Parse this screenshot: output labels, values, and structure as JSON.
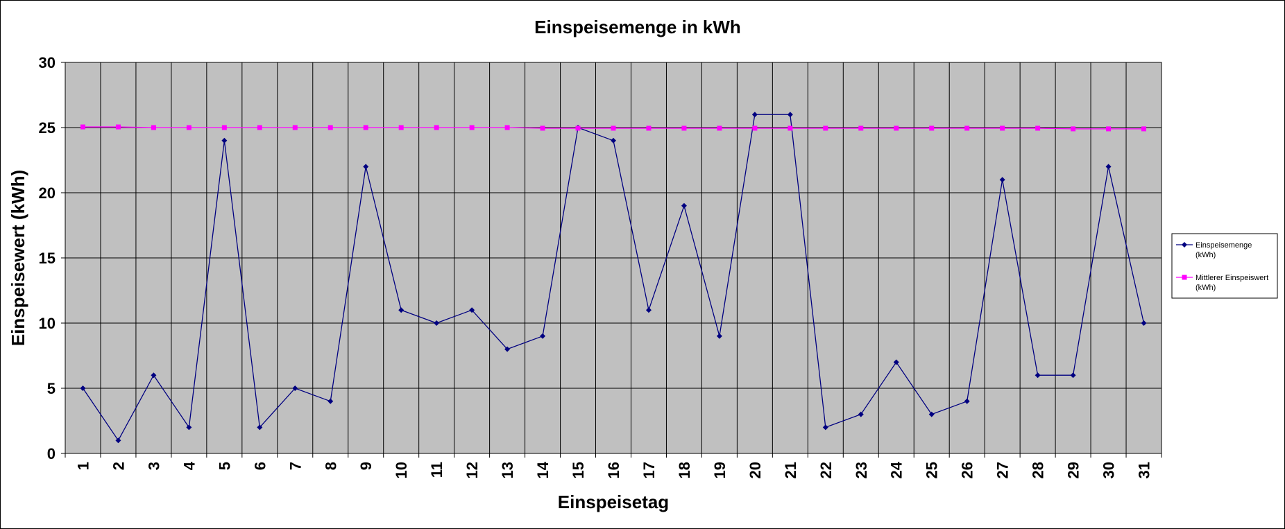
{
  "chart_data": {
    "type": "line",
    "title": "Einspeisemenge in kWh",
    "xlabel": "Einspeisetag",
    "ylabel": "Einspeisewert  (kWh)",
    "x": [
      1,
      2,
      3,
      4,
      5,
      6,
      7,
      8,
      9,
      10,
      11,
      12,
      13,
      14,
      15,
      16,
      17,
      18,
      19,
      20,
      21,
      22,
      23,
      24,
      25,
      26,
      27,
      28,
      29,
      30,
      31
    ],
    "ylim": [
      0,
      30
    ],
    "yticks": [
      0,
      5,
      10,
      15,
      20,
      25,
      30
    ],
    "grid": true,
    "legend_position": "right",
    "plot_background": "#c0c0c0",
    "series": [
      {
        "name": "Einspeisemenge (kWh)",
        "legend_lines": [
          "Einspeisemenge",
          "(kWh)"
        ],
        "color": "#000080",
        "marker": "diamond",
        "values": [
          5,
          1,
          6,
          2,
          24,
          2,
          5,
          4,
          22,
          11,
          10,
          11,
          8,
          9,
          25,
          24,
          11,
          19,
          9,
          26,
          26,
          2,
          3,
          7,
          3,
          4,
          21,
          6,
          6,
          22,
          10
        ]
      },
      {
        "name": "Mittlerer Einspeiswert (kWh)",
        "legend_lines": [
          "Mittlerer Einspeiswert",
          "(kWh)"
        ],
        "color": "#ff00ff",
        "marker": "square",
        "values": [
          25.05,
          25.05,
          25,
          25,
          25,
          25,
          25,
          25,
          25,
          25,
          25,
          25,
          25,
          24.95,
          24.95,
          24.95,
          24.95,
          24.95,
          24.95,
          24.95,
          24.95,
          24.95,
          24.95,
          24.95,
          24.95,
          24.95,
          24.95,
          24.95,
          24.9,
          24.9,
          24.9
        ]
      }
    ]
  }
}
